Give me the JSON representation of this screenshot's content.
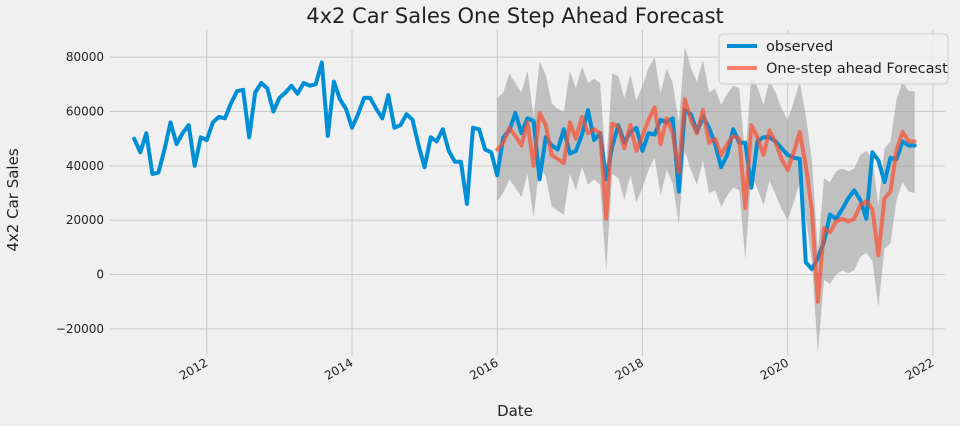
{
  "chart_data": {
    "type": "line",
    "title": "4x2 Car Sales One Step Ahead Forecast",
    "xlabel": "Date",
    "ylabel": "4x2 Car Sales",
    "ylim": [
      -30000,
      90000
    ],
    "xlim": [
      "2010-09-01",
      "2022-03-01"
    ],
    "yticks": [
      -20000,
      0,
      20000,
      40000,
      60000,
      80000
    ],
    "ytick_labels": [
      "−20000",
      "0",
      "20000",
      "40000",
      "60000",
      "80000"
    ],
    "xticks": [
      "2012-01-01",
      "2014-01-01",
      "2016-01-01",
      "2018-01-01",
      "2020-01-01",
      "2022-01-01"
    ],
    "xtick_labels": [
      "2012",
      "2014",
      "2016",
      "2018",
      "2020",
      "2022"
    ],
    "grid": true,
    "legend_position": "top-right",
    "colors": {
      "observed": "#008fd5",
      "forecast": "#fc4f30",
      "ci": "#999999",
      "background": "#f0f0f0",
      "grid": "#cbcbcb"
    },
    "series": [
      {
        "name": "observed",
        "x": [
          "2011-01",
          "2011-02",
          "2011-03",
          "2011-04",
          "2011-05",
          "2011-06",
          "2011-07",
          "2011-08",
          "2011-09",
          "2011-10",
          "2011-11",
          "2011-12",
          "2012-01",
          "2012-02",
          "2012-03",
          "2012-04",
          "2012-05",
          "2012-06",
          "2012-07",
          "2012-08",
          "2012-09",
          "2012-10",
          "2012-11",
          "2012-12",
          "2013-01",
          "2013-02",
          "2013-03",
          "2013-04",
          "2013-05",
          "2013-06",
          "2013-07",
          "2013-08",
          "2013-09",
          "2013-10",
          "2013-11",
          "2013-12",
          "2014-01",
          "2014-02",
          "2014-03",
          "2014-04",
          "2014-05",
          "2014-06",
          "2014-07",
          "2014-08",
          "2014-09",
          "2014-10",
          "2014-11",
          "2014-12",
          "2015-01",
          "2015-02",
          "2015-03",
          "2015-04",
          "2015-05",
          "2015-06",
          "2015-07",
          "2015-08",
          "2015-09",
          "2015-10",
          "2015-11",
          "2015-12",
          "2016-01",
          "2016-02",
          "2016-03",
          "2016-04",
          "2016-05",
          "2016-06",
          "2016-07",
          "2016-08",
          "2016-09",
          "2016-10",
          "2016-11",
          "2016-12",
          "2017-01",
          "2017-02",
          "2017-03",
          "2017-04",
          "2017-05",
          "2017-06",
          "2017-07",
          "2017-08",
          "2017-09",
          "2017-10",
          "2017-11",
          "2017-12",
          "2018-01",
          "2018-02",
          "2018-03",
          "2018-04",
          "2018-05",
          "2018-06",
          "2018-07",
          "2018-08",
          "2018-09",
          "2018-10",
          "2018-11",
          "2018-12",
          "2019-01",
          "2019-02",
          "2019-03",
          "2019-04",
          "2019-05",
          "2019-06",
          "2019-07",
          "2019-08",
          "2019-09",
          "2019-10",
          "2019-11",
          "2019-12",
          "2020-01",
          "2020-02",
          "2020-03",
          "2020-04",
          "2020-05",
          "2020-06",
          "2020-07",
          "2020-08",
          "2020-09",
          "2020-10",
          "2020-11",
          "2020-12",
          "2021-01",
          "2021-02",
          "2021-03",
          "2021-04",
          "2021-05",
          "2021-06",
          "2021-07",
          "2021-08",
          "2021-09",
          "2021-10"
        ],
        "values": [
          50000,
          45000,
          52000,
          37000,
          37500,
          46000,
          56000,
          48000,
          52000,
          55000,
          40000,
          50500,
          49500,
          56000,
          58000,
          57500,
          63000,
          67500,
          68000,
          50500,
          67000,
          70500,
          68500,
          60000,
          65000,
          67000,
          69500,
          66500,
          70500,
          69500,
          70000,
          78000,
          51000,
          71000,
          64500,
          61000,
          54000,
          59000,
          65000,
          65000,
          61000,
          57500,
          66000,
          54000,
          55000,
          59000,
          57000,
          47500,
          39500,
          50500,
          49000,
          53500,
          45500,
          41500,
          41500,
          26000,
          54000,
          53500,
          46000,
          45000,
          36500,
          50500,
          53000,
          59500,
          52000,
          57500,
          56500,
          35000,
          50500,
          47500,
          46000,
          53500,
          44500,
          45500,
          51500,
          60500,
          49500,
          52000,
          35000,
          47000,
          55000,
          48500,
          52500,
          54000,
          45500,
          52000,
          51500,
          57000,
          56000,
          57500,
          30500,
          60500,
          59000,
          52500,
          58000,
          54000,
          48000,
          39500,
          44000,
          53500,
          48500,
          48500,
          32000,
          49000,
          50500,
          50500,
          49000,
          46500,
          44000,
          43000,
          42500,
          4500,
          2000,
          6000,
          12000,
          22000,
          20500,
          24000,
          28000,
          31000,
          27500,
          20500,
          45000,
          42000,
          34000,
          43000,
          42500,
          49000,
          47500,
          47500
        ]
      },
      {
        "name": "One-step ahead Forecast",
        "x": [
          "2016-01",
          "2016-02",
          "2016-03",
          "2016-04",
          "2016-05",
          "2016-06",
          "2016-07",
          "2016-08",
          "2016-09",
          "2016-10",
          "2016-11",
          "2016-12",
          "2017-01",
          "2017-02",
          "2017-03",
          "2017-04",
          "2017-05",
          "2017-06",
          "2017-07",
          "2017-08",
          "2017-09",
          "2017-10",
          "2017-11",
          "2017-12",
          "2018-01",
          "2018-02",
          "2018-03",
          "2018-04",
          "2018-05",
          "2018-06",
          "2018-07",
          "2018-08",
          "2018-09",
          "2018-10",
          "2018-11",
          "2018-12",
          "2019-01",
          "2019-02",
          "2019-03",
          "2019-04",
          "2019-05",
          "2019-06",
          "2019-07",
          "2019-08",
          "2019-09",
          "2019-10",
          "2019-11",
          "2019-12",
          "2020-01",
          "2020-02",
          "2020-03",
          "2020-04",
          "2020-05",
          "2020-06",
          "2020-07",
          "2020-08",
          "2020-09",
          "2020-10",
          "2020-11",
          "2020-12",
          "2021-01",
          "2021-02",
          "2021-03",
          "2021-04",
          "2021-05",
          "2021-06",
          "2021-07",
          "2021-08",
          "2021-09",
          "2021-10"
        ],
        "values": [
          46000,
          48500,
          54000,
          51000,
          47500,
          56000,
          40000,
          59500,
          55000,
          44000,
          42500,
          41000,
          56000,
          50000,
          58000,
          52000,
          53500,
          52000,
          20500,
          55500,
          54500,
          46500,
          55000,
          45500,
          51000,
          57000,
          61500,
          48000,
          57500,
          52000,
          37500,
          64500,
          57000,
          52000,
          60500,
          48500,
          50000,
          44000,
          48000,
          51000,
          50000,
          24500,
          55000,
          50500,
          44000,
          53000,
          48500,
          42500,
          38500,
          45000,
          52500,
          40000,
          23500,
          -10000,
          17000,
          15500,
          19500,
          20500,
          19500,
          20500,
          25500,
          27000,
          24000,
          7000,
          28000,
          30500,
          46000,
          52500,
          49000,
          49000
        ]
      }
    ],
    "confidence_interval": {
      "x": [
        "2016-01",
        "2016-02",
        "2016-03",
        "2016-04",
        "2016-05",
        "2016-06",
        "2016-07",
        "2016-08",
        "2016-09",
        "2016-10",
        "2016-11",
        "2016-12",
        "2017-01",
        "2017-02",
        "2017-03",
        "2017-04",
        "2017-05",
        "2017-06",
        "2017-07",
        "2017-08",
        "2017-09",
        "2017-10",
        "2017-11",
        "2017-12",
        "2018-01",
        "2018-02",
        "2018-03",
        "2018-04",
        "2018-05",
        "2018-06",
        "2018-07",
        "2018-08",
        "2018-09",
        "2018-10",
        "2018-11",
        "2018-12",
        "2019-01",
        "2019-02",
        "2019-03",
        "2019-04",
        "2019-05",
        "2019-06",
        "2019-07",
        "2019-08",
        "2019-09",
        "2019-10",
        "2019-11",
        "2019-12",
        "2020-01",
        "2020-02",
        "2020-03",
        "2020-04",
        "2020-05",
        "2020-06",
        "2020-07",
        "2020-08",
        "2020-09",
        "2020-10",
        "2020-11",
        "2020-12",
        "2021-01",
        "2021-02",
        "2021-03",
        "2021-04",
        "2021-05",
        "2021-06",
        "2021-07",
        "2021-08",
        "2021-09",
        "2021-10"
      ],
      "upper": [
        65000,
        67000,
        74000,
        70500,
        67000,
        75000,
        58000,
        78500,
        73500,
        63000,
        61000,
        60000,
        75000,
        68500,
        76500,
        70500,
        72000,
        70500,
        39500,
        74000,
        73000,
        65000,
        73500,
        64000,
        69500,
        76000,
        80000,
        66500,
        76000,
        70500,
        56000,
        84000,
        76000,
        71000,
        79000,
        67000,
        68500,
        62500,
        66500,
        69500,
        68500,
        43000,
        73500,
        69000,
        62500,
        71500,
        67000,
        61000,
        57000,
        63500,
        71000,
        58500,
        42000,
        8500,
        35500,
        34000,
        38000,
        39000,
        38000,
        39000,
        44000,
        45500,
        42500,
        25500,
        46500,
        49000,
        64500,
        71000,
        67500,
        67500
      ],
      "lower": [
        27000,
        30000,
        35000,
        32000,
        28500,
        37000,
        21000,
        40500,
        36000,
        25000,
        23500,
        22000,
        37000,
        31000,
        39500,
        33000,
        35000,
        33000,
        1500,
        37000,
        35500,
        27500,
        36500,
        26500,
        32000,
        38500,
        43000,
        29000,
        38500,
        33500,
        18500,
        45500,
        38500,
        33000,
        42000,
        30000,
        31000,
        25000,
        29000,
        32000,
        31000,
        5500,
        36500,
        31500,
        25500,
        34500,
        29500,
        24000,
        20000,
        26500,
        34000,
        21000,
        4500,
        -29000,
        -2000,
        -3500,
        0,
        1500,
        500,
        1500,
        6500,
        8000,
        5000,
        -12000,
        9500,
        11500,
        27500,
        34000,
        30500,
        30000
      ]
    }
  }
}
